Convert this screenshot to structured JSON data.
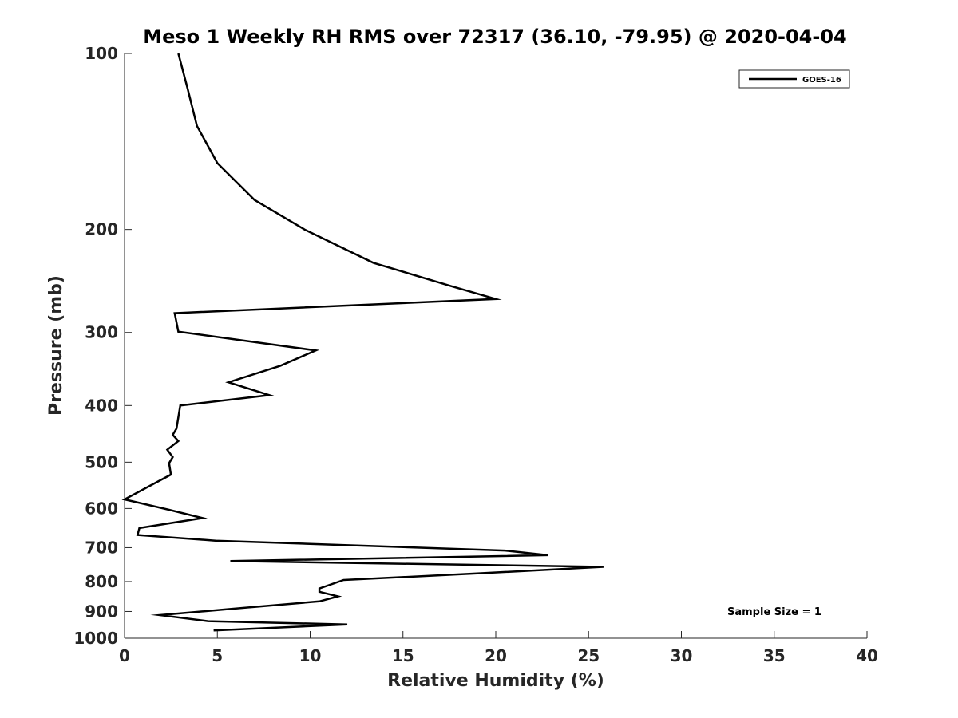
{
  "chart_data": {
    "type": "line",
    "title": "Meso 1 Weekly RH RMS over 72317 (36.10, -79.95) @ 2020-04-04",
    "xlabel": "Relative Humidity (%)",
    "ylabel": "Pressure (mb)",
    "xlim": [
      0,
      40
    ],
    "ylim": [
      100,
      1000
    ],
    "y_scale": "log",
    "y_reversed": true,
    "x_ticks": [
      0,
      5,
      10,
      15,
      20,
      25,
      30,
      35,
      40
    ],
    "y_ticks": [
      100,
      200,
      300,
      400,
      500,
      600,
      700,
      800,
      900,
      1000
    ],
    "grid": false,
    "legend_position": "top-right",
    "annotation": "Sample Size = 1",
    "series": [
      {
        "name": "GOES-16",
        "color": "#000000",
        "points": [
          [
            2.9,
            100
          ],
          [
            3.4,
            115
          ],
          [
            3.9,
            133
          ],
          [
            5.0,
            154
          ],
          [
            7.0,
            178
          ],
          [
            9.7,
            200
          ],
          [
            13.4,
            228
          ],
          [
            17.6,
            250
          ],
          [
            20.0,
            263
          ],
          [
            2.7,
            278
          ],
          [
            2.9,
            299
          ],
          [
            10.3,
            322
          ],
          [
            8.4,
            342
          ],
          [
            5.6,
            365
          ],
          [
            7.8,
            384
          ],
          [
            3.0,
            400
          ],
          [
            2.8,
            438
          ],
          [
            2.6,
            449
          ],
          [
            2.9,
            460
          ],
          [
            2.3,
            476
          ],
          [
            2.6,
            490
          ],
          [
            2.4,
            502
          ],
          [
            2.5,
            525
          ],
          [
            1.4,
            548
          ],
          [
            0.0,
            579
          ],
          [
            2.4,
            603
          ],
          [
            4.2,
            623
          ],
          [
            0.8,
            648
          ],
          [
            0.7,
            666
          ],
          [
            4.9,
            681
          ],
          [
            20.5,
            708
          ],
          [
            22.8,
            721
          ],
          [
            5.7,
            738
          ],
          [
            25.8,
            755
          ],
          [
            18.9,
            775
          ],
          [
            11.8,
            795
          ],
          [
            10.5,
            822
          ],
          [
            10.5,
            833
          ],
          [
            11.5,
            848
          ],
          [
            10.5,
            865
          ],
          [
            7.0,
            884
          ],
          [
            1.9,
            913
          ],
          [
            4.5,
            935
          ],
          [
            12.0,
            947
          ],
          [
            4.8,
            970
          ]
        ]
      }
    ]
  }
}
